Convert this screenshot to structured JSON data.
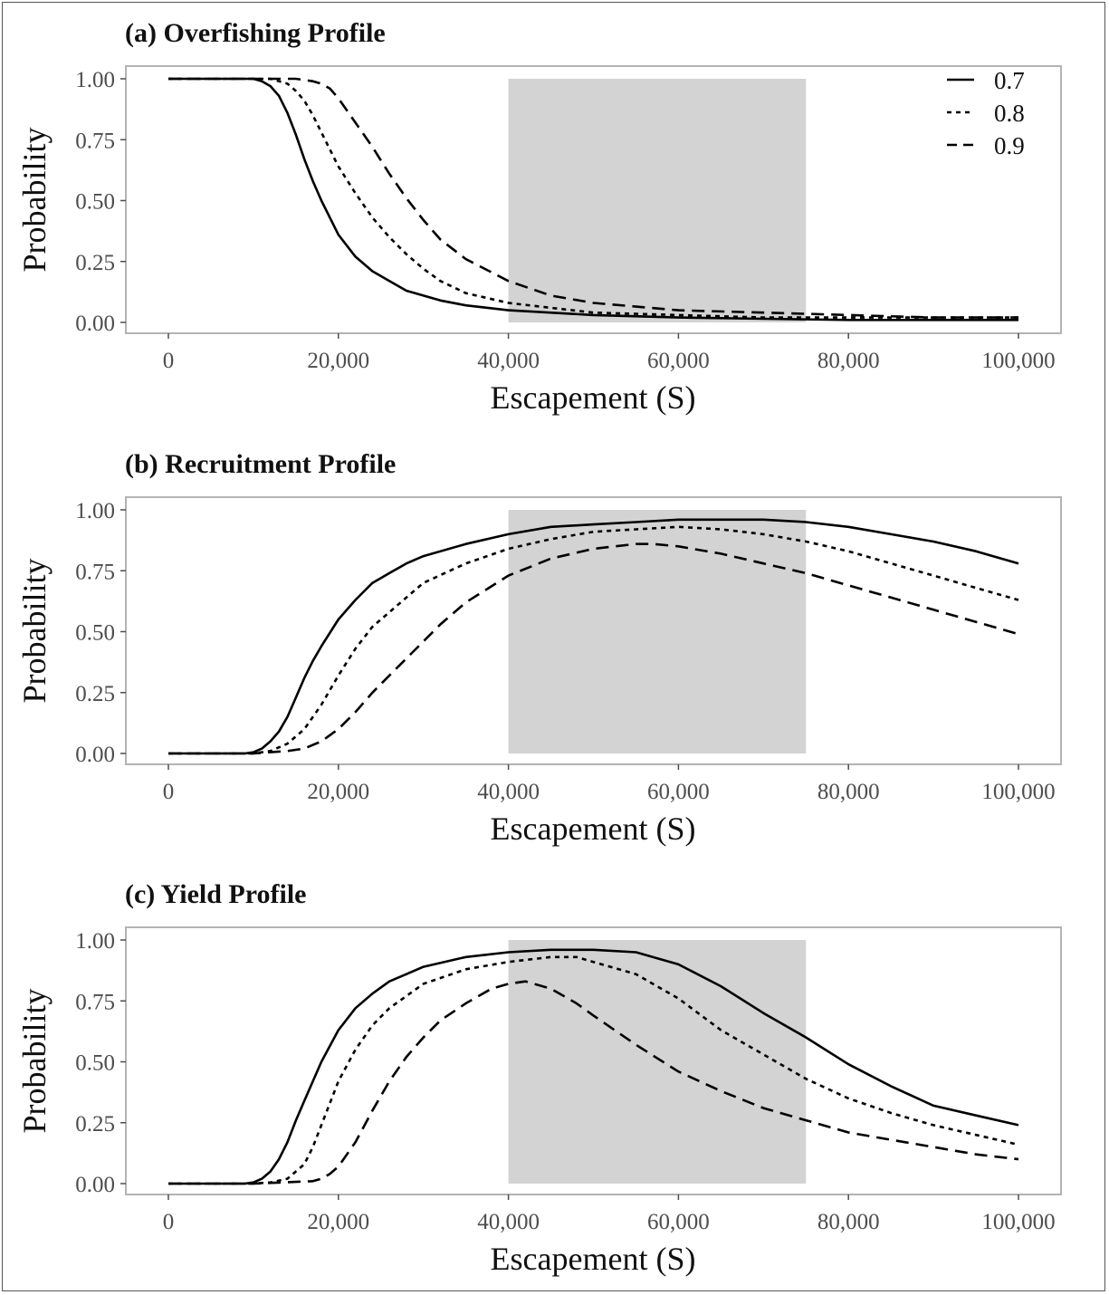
{
  "chart_data": [
    {
      "type": "line",
      "title": "(a) Overfishing Profile",
      "xlabel": "Escapement (S)",
      "ylabel": "Probability",
      "xlim": [
        0,
        100000
      ],
      "ylim": [
        0,
        1
      ],
      "x_ticks": [
        "0",
        "20,000",
        "40,000",
        "60,000",
        "80,000",
        "100,000"
      ],
      "y_ticks": [
        "0.00",
        "0.25",
        "0.50",
        "0.75",
        "1.00"
      ],
      "shaded_region": [
        40000,
        75000
      ],
      "legend": {
        "position": "top-right",
        "entries": [
          "0.7",
          "0.8",
          "0.9"
        ]
      },
      "series": [
        {
          "name": "0.7",
          "dash": "solid",
          "x": [
            0,
            5000,
            10000,
            11000,
            12000,
            13000,
            14000,
            15000,
            16000,
            17000,
            18000,
            20000,
            22000,
            24000,
            26000,
            28000,
            30000,
            32000,
            35000,
            40000,
            50000,
            60000,
            70000,
            80000,
            90000,
            100000
          ],
          "y": [
            1.0,
            1.0,
            1.0,
            0.99,
            0.97,
            0.93,
            0.86,
            0.77,
            0.67,
            0.58,
            0.5,
            0.36,
            0.27,
            0.21,
            0.17,
            0.13,
            0.11,
            0.09,
            0.07,
            0.05,
            0.03,
            0.02,
            0.015,
            0.01,
            0.01,
            0.01
          ]
        },
        {
          "name": "0.8",
          "dash": "dotted",
          "x": [
            0,
            10000,
            12000,
            14000,
            15000,
            16000,
            17000,
            18000,
            19000,
            20000,
            22000,
            24000,
            26000,
            28000,
            30000,
            32000,
            35000,
            40000,
            45000,
            50000,
            60000,
            70000,
            80000,
            90000,
            100000
          ],
          "y": [
            1.0,
            1.0,
            1.0,
            0.98,
            0.95,
            0.91,
            0.85,
            0.78,
            0.71,
            0.64,
            0.53,
            0.43,
            0.35,
            0.28,
            0.22,
            0.17,
            0.12,
            0.08,
            0.06,
            0.04,
            0.03,
            0.02,
            0.02,
            0.02,
            0.02
          ]
        },
        {
          "name": "0.9",
          "dash": "dashed",
          "x": [
            0,
            10000,
            15000,
            17000,
            18000,
            19000,
            20000,
            21000,
            22000,
            24000,
            26000,
            28000,
            30000,
            32000,
            35000,
            40000,
            45000,
            50000,
            60000,
            70000,
            80000,
            90000,
            100000
          ],
          "y": [
            1.0,
            1.0,
            1.0,
            0.99,
            0.98,
            0.96,
            0.92,
            0.87,
            0.82,
            0.72,
            0.61,
            0.51,
            0.42,
            0.34,
            0.26,
            0.17,
            0.11,
            0.08,
            0.05,
            0.04,
            0.03,
            0.02,
            0.02
          ]
        }
      ]
    },
    {
      "type": "line",
      "title": "(b) Recruitment Profile",
      "xlabel": "Escapement (S)",
      "ylabel": "Probability",
      "xlim": [
        0,
        100000
      ],
      "ylim": [
        0,
        1
      ],
      "x_ticks": [
        "0",
        "20,000",
        "40,000",
        "60,000",
        "80,000",
        "100,000"
      ],
      "y_ticks": [
        "0.00",
        "0.25",
        "0.50",
        "0.75",
        "1.00"
      ],
      "shaded_region": [
        40000,
        75000
      ],
      "series": [
        {
          "name": "0.7",
          "dash": "solid",
          "x": [
            0,
            9000,
            10000,
            11000,
            12000,
            13000,
            14000,
            15000,
            16000,
            17000,
            18000,
            20000,
            22000,
            24000,
            26000,
            28000,
            30000,
            35000,
            40000,
            45000,
            50000,
            55000,
            60000,
            65000,
            70000,
            75000,
            80000,
            85000,
            90000,
            95000,
            100000
          ],
          "y": [
            0.0,
            0.0,
            0.005,
            0.02,
            0.05,
            0.09,
            0.15,
            0.23,
            0.31,
            0.38,
            0.44,
            0.55,
            0.63,
            0.7,
            0.74,
            0.78,
            0.81,
            0.86,
            0.9,
            0.93,
            0.94,
            0.95,
            0.96,
            0.96,
            0.96,
            0.95,
            0.93,
            0.9,
            0.87,
            0.83,
            0.78
          ]
        },
        {
          "name": "0.8",
          "dash": "dotted",
          "x": [
            0,
            10000,
            12000,
            14000,
            16000,
            18000,
            20000,
            22000,
            24000,
            26000,
            28000,
            30000,
            35000,
            40000,
            45000,
            50000,
            55000,
            60000,
            65000,
            70000,
            75000,
            80000,
            85000,
            90000,
            95000,
            100000
          ],
          "y": [
            0.0,
            0.0,
            0.01,
            0.04,
            0.1,
            0.2,
            0.32,
            0.43,
            0.52,
            0.58,
            0.64,
            0.7,
            0.78,
            0.84,
            0.88,
            0.91,
            0.92,
            0.93,
            0.92,
            0.9,
            0.87,
            0.83,
            0.78,
            0.73,
            0.68,
            0.63
          ]
        },
        {
          "name": "0.9",
          "dash": "dashed",
          "x": [
            0,
            10000,
            14000,
            16000,
            18000,
            20000,
            22000,
            24000,
            26000,
            28000,
            30000,
            32000,
            35000,
            40000,
            45000,
            50000,
            55000,
            57000,
            60000,
            65000,
            70000,
            75000,
            80000,
            85000,
            90000,
            95000,
            100000
          ],
          "y": [
            0.0,
            0.0,
            0.01,
            0.02,
            0.05,
            0.1,
            0.17,
            0.25,
            0.32,
            0.39,
            0.46,
            0.53,
            0.62,
            0.73,
            0.8,
            0.84,
            0.86,
            0.86,
            0.85,
            0.82,
            0.78,
            0.74,
            0.69,
            0.64,
            0.59,
            0.54,
            0.49
          ]
        }
      ]
    },
    {
      "type": "line",
      "title": "(c) Yield Profile",
      "xlabel": "Escapement (S)",
      "ylabel": "Probability",
      "xlim": [
        0,
        100000
      ],
      "ylim": [
        0,
        1
      ],
      "x_ticks": [
        "0",
        "20,000",
        "40,000",
        "60,000",
        "80,000",
        "100,000"
      ],
      "y_ticks": [
        "0.00",
        "0.25",
        "0.50",
        "0.75",
        "1.00"
      ],
      "shaded_region": [
        40000,
        75000
      ],
      "series": [
        {
          "name": "0.7",
          "dash": "solid",
          "x": [
            0,
            9000,
            10000,
            11000,
            12000,
            13000,
            14000,
            15000,
            16000,
            17000,
            18000,
            20000,
            22000,
            24000,
            26000,
            28000,
            30000,
            35000,
            40000,
            45000,
            50000,
            55000,
            60000,
            65000,
            70000,
            75000,
            80000,
            85000,
            90000,
            95000,
            100000
          ],
          "y": [
            0.0,
            0.0,
            0.005,
            0.02,
            0.05,
            0.1,
            0.17,
            0.26,
            0.34,
            0.42,
            0.5,
            0.63,
            0.72,
            0.78,
            0.83,
            0.86,
            0.89,
            0.93,
            0.95,
            0.96,
            0.96,
            0.95,
            0.9,
            0.81,
            0.7,
            0.6,
            0.49,
            0.4,
            0.32,
            0.28,
            0.24
          ]
        },
        {
          "name": "0.8",
          "dash": "dotted",
          "x": [
            0,
            10000,
            12000,
            14000,
            16000,
            17000,
            18000,
            19000,
            20000,
            22000,
            24000,
            26000,
            28000,
            30000,
            35000,
            40000,
            45000,
            48000,
            50000,
            55000,
            60000,
            65000,
            70000,
            75000,
            80000,
            85000,
            90000,
            95000,
            100000
          ],
          "y": [
            0.0,
            0.0,
            0.005,
            0.02,
            0.08,
            0.15,
            0.24,
            0.33,
            0.42,
            0.55,
            0.65,
            0.72,
            0.77,
            0.82,
            0.88,
            0.91,
            0.93,
            0.93,
            0.91,
            0.86,
            0.76,
            0.63,
            0.53,
            0.43,
            0.35,
            0.29,
            0.24,
            0.2,
            0.16
          ]
        },
        {
          "name": "0.9",
          "dash": "dashed",
          "x": [
            0,
            10000,
            17000,
            18000,
            19000,
            20000,
            22000,
            24000,
            26000,
            28000,
            30000,
            32000,
            35000,
            38000,
            40000,
            42000,
            45000,
            48000,
            50000,
            55000,
            60000,
            65000,
            70000,
            75000,
            80000,
            85000,
            90000,
            95000,
            100000
          ],
          "y": [
            0.0,
            0.0,
            0.01,
            0.02,
            0.04,
            0.07,
            0.17,
            0.3,
            0.42,
            0.52,
            0.6,
            0.67,
            0.74,
            0.8,
            0.82,
            0.83,
            0.8,
            0.74,
            0.69,
            0.57,
            0.46,
            0.38,
            0.31,
            0.26,
            0.21,
            0.18,
            0.15,
            0.12,
            0.1
          ]
        }
      ]
    }
  ]
}
